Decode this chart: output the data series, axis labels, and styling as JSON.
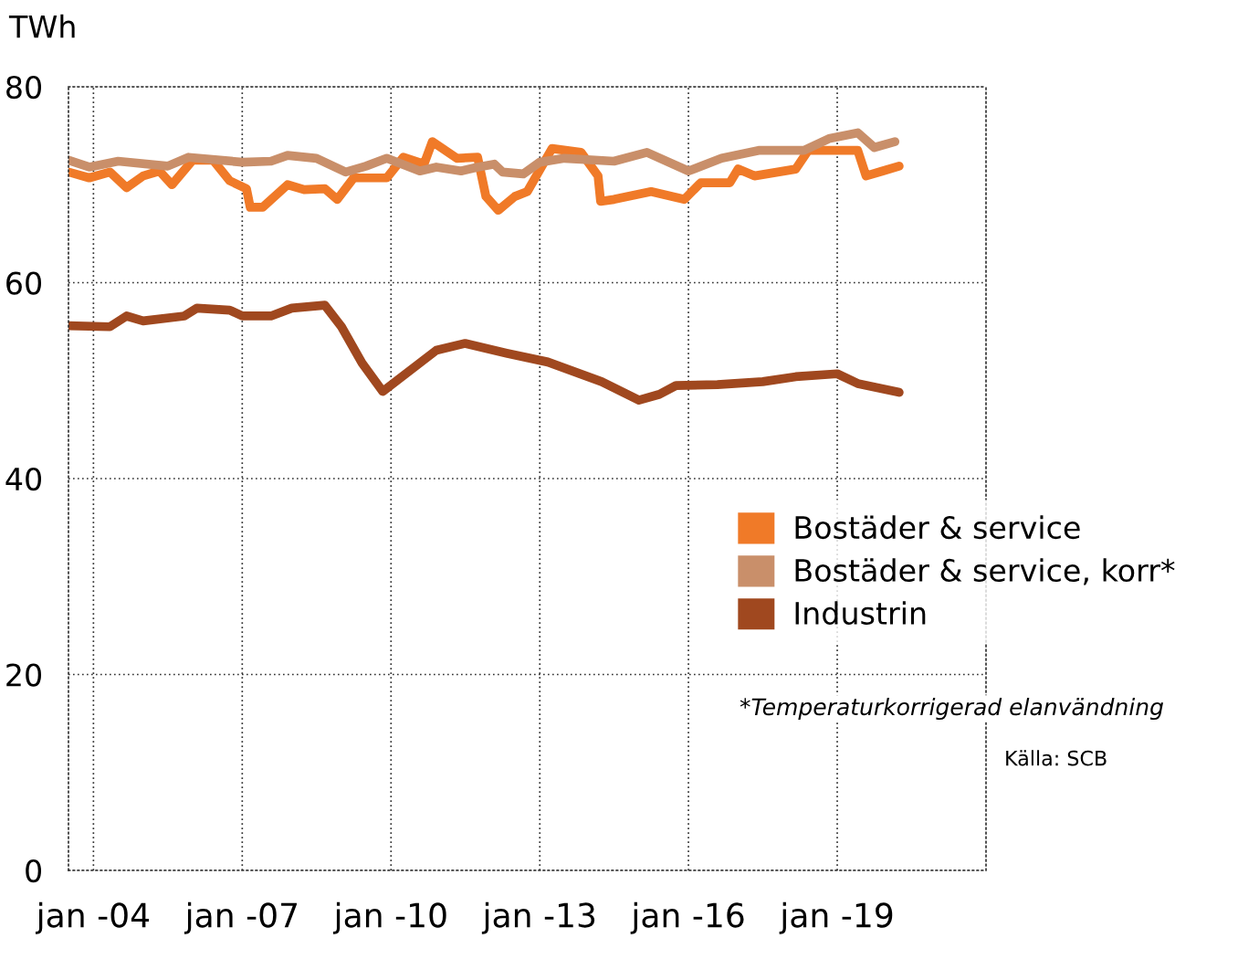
{
  "chart_data": {
    "type": "line",
    "ylabel": "TWh",
    "xlim": [
      "2003-07",
      "2022-01"
    ],
    "xticks": [
      {
        "value": "2004-01",
        "label": "jan -04"
      },
      {
        "value": "2007-01",
        "label": "jan -07"
      },
      {
        "value": "2010-01",
        "label": "jan -10"
      },
      {
        "value": "2013-01",
        "label": "jan -13"
      },
      {
        "value": "2016-01",
        "label": "jan -16"
      },
      {
        "value": "2019-01",
        "label": "jan -19"
      }
    ],
    "ylim": [
      0,
      80
    ],
    "yticks": [
      0,
      20,
      40,
      60,
      80
    ],
    "grid": true,
    "line_style": "solid",
    "marker": "none",
    "legend": "right",
    "series": [
      {
        "name": "Bostäder & service",
        "color": "#f07a28",
        "x": [
          "2003-07",
          "2003-12",
          "2004-05",
          "2004-09",
          "2005-01",
          "2005-05",
          "2005-08",
          "2006-01",
          "2006-06",
          "2006-10",
          "2007-02",
          "2007-03",
          "2007-06",
          "2007-12",
          "2008-04",
          "2008-09",
          "2008-12",
          "2009-04",
          "2009-12",
          "2010-04",
          "2010-09",
          "2010-11",
          "2011-05",
          "2011-10",
          "2011-12",
          "2012-03",
          "2012-07",
          "2012-10",
          "2013-04",
          "2013-11",
          "2014-03-06",
          "2014-03-25",
          "2014-07",
          "2015-04",
          "2015-12",
          "2016-04",
          "2016-11",
          "2017-01",
          "2017-05",
          "2018-03",
          "2018-06",
          "2019-06",
          "2019-08",
          "2019-12",
          "2020-04"
        ],
        "values": [
          71.3,
          70.7,
          71.3,
          69.7,
          70.9,
          71.4,
          70.0,
          72.5,
          72.5,
          70.4,
          69.6,
          67.7,
          67.7,
          70.0,
          69.5,
          69.6,
          68.5,
          70.7,
          70.7,
          72.8,
          72.1,
          74.4,
          72.7,
          72.8,
          68.8,
          67.4,
          68.8,
          69.3,
          73.7,
          73.3,
          70.9,
          68.3,
          68.5,
          69.3,
          68.5,
          70.2,
          70.2,
          71.6,
          70.9,
          71.6,
          73.5,
          73.5,
          70.9,
          71.4,
          71.9
        ]
      },
      {
        "name": "Bostäder & service, korr*",
        "color": "#c98f6a",
        "x": [
          "2003-07",
          "2003-12",
          "2004-07",
          "2005-07",
          "2005-12",
          "2007-01",
          "2007-08",
          "2007-12",
          "2008-07",
          "2009-02",
          "2009-07",
          "2009-12",
          "2010-08",
          "2010-12",
          "2011-06",
          "2011-10",
          "2012-02",
          "2012-04",
          "2012-09",
          "2013-01",
          "2013-07",
          "2014-07",
          "2015-03",
          "2016-01",
          "2016-09",
          "2017-06",
          "2018-05",
          "2018-11",
          "2019-06",
          "2019-10",
          "2020-03"
        ],
        "values": [
          72.5,
          71.8,
          72.4,
          71.9,
          72.8,
          72.3,
          72.4,
          73.0,
          72.7,
          71.3,
          71.9,
          72.7,
          71.4,
          71.8,
          71.4,
          71.8,
          72.1,
          71.3,
          71.1,
          72.3,
          72.7,
          72.4,
          73.3,
          71.4,
          72.7,
          73.5,
          73.5,
          74.7,
          75.3,
          73.8,
          74.4
        ]
      },
      {
        "name": "Industrin",
        "color": "#a0481f",
        "x": [
          "2003-07",
          "2004-05",
          "2004-09",
          "2005-01",
          "2005-11",
          "2006-02",
          "2006-10",
          "2007-01",
          "2007-08",
          "2008-01",
          "2008-09",
          "2009-01",
          "2009-06",
          "2009-11",
          "2010-12",
          "2011-07",
          "2012-05",
          "2013-03",
          "2014-04",
          "2015-01",
          "2015-06",
          "2015-10",
          "2016-08",
          "2017-07",
          "2018-03",
          "2019-01",
          "2019-06",
          "2020-04"
        ],
        "values": [
          55.6,
          55.5,
          56.6,
          56.1,
          56.6,
          57.4,
          57.2,
          56.6,
          56.6,
          57.4,
          57.7,
          55.5,
          51.8,
          48.9,
          53.1,
          53.8,
          52.8,
          51.9,
          49.9,
          48.0,
          48.6,
          49.5,
          49.6,
          49.9,
          50.4,
          50.7,
          49.7,
          48.8
        ]
      }
    ],
    "annotations": [
      "*Temperaturkorrigerad elanvändning",
      "Källa: SCB"
    ]
  }
}
